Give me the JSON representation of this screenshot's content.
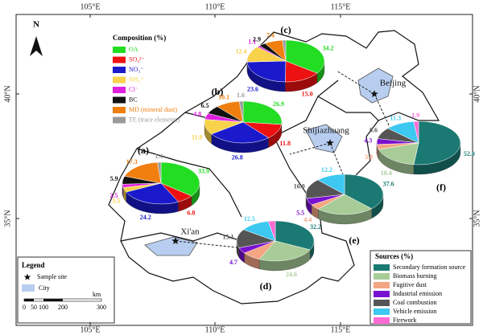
{
  "map": {
    "graticule": {
      "lon": [
        "105°E",
        "110°E",
        "115°E"
      ],
      "lat": [
        "40°N",
        "35°N"
      ]
    },
    "north": "N",
    "cities": [
      "Xi'an",
      "Shijiazhuang",
      "Beijing"
    ]
  },
  "composition": {
    "title": "Composition (%)",
    "items": [
      {
        "name": "OA",
        "color": "#22dd22"
      },
      {
        "name": "SO₄²⁻",
        "color": "#ee1111"
      },
      {
        "name": "NO₃⁻",
        "color": "#1a1acc"
      },
      {
        "name": "NH₄⁺",
        "color": "#f8d24a"
      },
      {
        "name": "Cl⁻",
        "color": "#e020e0"
      },
      {
        "name": "BC",
        "color": "#111111"
      },
      {
        "name": "MD (mineral dust)",
        "color": "#f07f10"
      },
      {
        "name": "TE (trace elements)",
        "color": "#9a9a9a"
      }
    ],
    "pies": [
      {
        "label": "(a)",
        "values": [
          33.9,
          6.8,
          24.2,
          3.5,
          2.5,
          5.9,
          17.3,
          1.4
        ],
        "value_labels": [
          "33.9",
          "6.8",
          "24.2",
          "3.5",
          "2.5",
          "5.9",
          "17.3",
          "1.4"
        ]
      },
      {
        "label": "(b)",
        "values": [
          26.9,
          11.8,
          26.8,
          11.8,
          4.8,
          6.5,
          10.1,
          1.6
        ],
        "value_labels": [
          "26.9",
          "11.8",
          "26.8",
          "11.8",
          "4.8",
          "6.5",
          "10.1",
          "1.6"
        ]
      },
      {
        "label": "(c)",
        "values": [
          34.2,
          15.0,
          23.6,
          12.4,
          1.1,
          2.9,
          7.4,
          1.4
        ],
        "value_labels": [
          "34.2",
          "15.0",
          "23.6",
          "12.4",
          "1.1",
          "2.9",
          "7.4",
          null
        ]
      }
    ]
  },
  "sources": {
    "title": "Sources (%)",
    "items": [
      {
        "name": "Secondary formation source",
        "color": "#1a7a73"
      },
      {
        "name": "Biomass burning",
        "color": "#a8cc98"
      },
      {
        "name": "Fugitive dust",
        "color": "#f4a582"
      },
      {
        "name": "Industrial emission",
        "color": "#7a10d0"
      },
      {
        "name": "Coal combustion",
        "color": "#555555"
      },
      {
        "name": "Vehicle emission",
        "color": "#3cc8f0"
      },
      {
        "name": "Firework",
        "color": "#ff6ad5"
      }
    ],
    "pies": [
      {
        "label": "(d)",
        "values": [
          32.2,
          24.6,
          8.0,
          4.7,
          15.1,
          12.5,
          2.9
        ],
        "value_labels": [
          "32.2",
          "24.6",
          null,
          "4.7",
          "15.1",
          "12.5",
          null
        ]
      },
      {
        "label": "(e)",
        "values": [
          37.6,
          24.3,
          4.4,
          5.5,
          16.0,
          12.2,
          null
        ],
        "value_labels": [
          "37.6",
          null,
          "4.4",
          "5.5",
          "16.0",
          "12.2",
          null
        ]
      },
      {
        "label": "(f)",
        "values": [
          52.0,
          18.4,
          3.8,
          4.3,
          8.6,
          11.3,
          1.9
        ],
        "value_labels": [
          "52.0",
          "18.4",
          "3.8",
          "4.3",
          "8.6",
          "11.3",
          "1.9"
        ]
      }
    ]
  },
  "legend": {
    "title": "Legend",
    "sample_site": "Sample site",
    "city": "City",
    "scale_unit": "km",
    "scale_labels": [
      "0",
      "50",
      "100",
      "200",
      "300"
    ]
  }
}
